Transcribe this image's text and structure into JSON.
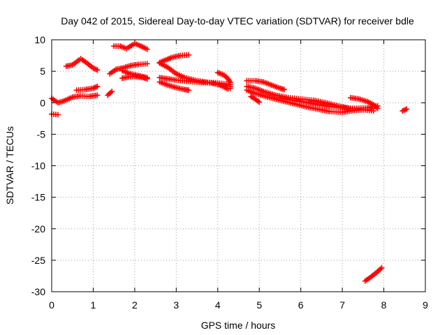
{
  "chart_data": {
    "type": "scatter",
    "title": "Day 042 of 2015, Sidereal Day-to-day VTEC variation (SDTVAR) for receiver bdle",
    "xlabel": "GPS time / hours",
    "ylabel": "SDTVAR / TECUs",
    "xlim": [
      0,
      9
    ],
    "ylim": [
      -30,
      10
    ],
    "x_ticks": [
      0,
      1,
      2,
      3,
      4,
      5,
      6,
      7,
      8,
      9
    ],
    "y_ticks": [
      -30,
      -25,
      -20,
      -15,
      -10,
      -5,
      0,
      5,
      10
    ],
    "grid": true,
    "marker": "+",
    "color": "#ff0000",
    "series": [
      {
        "name": "s1",
        "points": [
          [
            0.0,
            0.7
          ],
          [
            0.15,
            0.0
          ],
          [
            0.3,
            0.3
          ],
          [
            0.5,
            0.9
          ],
          [
            0.7,
            1.1
          ],
          [
            0.9,
            1.0
          ],
          [
            1.1,
            1.2
          ]
        ]
      },
      {
        "name": "s2",
        "points": [
          [
            0.0,
            -1.8
          ],
          [
            0.15,
            -1.9
          ]
        ]
      },
      {
        "name": "s3",
        "points": [
          [
            0.35,
            5.8
          ],
          [
            0.5,
            6.0
          ],
          [
            0.7,
            7.0
          ],
          [
            0.85,
            6.3
          ],
          [
            1.0,
            5.5
          ],
          [
            1.1,
            5.2
          ]
        ]
      },
      {
        "name": "s4",
        "points": [
          [
            0.6,
            2.0
          ],
          [
            0.8,
            2.1
          ],
          [
            1.0,
            2.3
          ],
          [
            1.1,
            2.6
          ]
        ]
      },
      {
        "name": "s5",
        "points": [
          [
            1.35,
            1.2
          ],
          [
            1.45,
            1.8
          ]
        ]
      },
      {
        "name": "s6",
        "points": [
          [
            1.4,
            4.6
          ],
          [
            1.55,
            5.3
          ],
          [
            1.7,
            5.5
          ],
          [
            1.9,
            5.9
          ],
          [
            2.1,
            6.1
          ],
          [
            2.3,
            6.2
          ]
        ]
      },
      {
        "name": "s7",
        "points": [
          [
            1.5,
            9.0
          ],
          [
            1.65,
            9.0
          ],
          [
            1.8,
            8.6
          ],
          [
            2.0,
            9.4
          ],
          [
            2.15,
            9.0
          ],
          [
            2.3,
            8.5
          ]
        ]
      },
      {
        "name": "s8",
        "points": [
          [
            1.7,
            3.9
          ],
          [
            1.85,
            4.1
          ],
          [
            2.0,
            4.2
          ],
          [
            2.2,
            4.0
          ],
          [
            2.3,
            3.8
          ]
        ]
      },
      {
        "name": "s9",
        "points": [
          [
            1.7,
            5.1
          ],
          [
            1.9,
            4.6
          ],
          [
            2.1,
            4.3
          ],
          [
            2.3,
            4.0
          ]
        ]
      },
      {
        "name": "s10",
        "points": [
          [
            2.6,
            6.4
          ],
          [
            2.75,
            6.8
          ],
          [
            2.9,
            7.2
          ],
          [
            3.1,
            7.5
          ],
          [
            3.3,
            7.6
          ]
        ]
      },
      {
        "name": "s11",
        "points": [
          [
            2.6,
            6.3
          ],
          [
            2.8,
            5.6
          ],
          [
            3.0,
            4.6
          ],
          [
            3.2,
            4.0
          ],
          [
            3.5,
            3.5
          ],
          [
            3.8,
            3.2
          ],
          [
            4.0,
            2.9
          ],
          [
            4.25,
            2.8
          ]
        ]
      },
      {
        "name": "s12",
        "points": [
          [
            2.6,
            4.0
          ],
          [
            2.8,
            3.8
          ],
          [
            3.0,
            3.6
          ],
          [
            3.3,
            3.4
          ],
          [
            3.6,
            3.2
          ],
          [
            3.9,
            3.2
          ],
          [
            4.2,
            3.0
          ]
        ]
      },
      {
        "name": "s13",
        "points": [
          [
            2.6,
            3.3
          ],
          [
            2.8,
            2.8
          ],
          [
            3.0,
            2.4
          ],
          [
            3.2,
            2.1
          ],
          [
            3.3,
            2.0
          ]
        ]
      },
      {
        "name": "s14",
        "points": [
          [
            4.0,
            4.8
          ],
          [
            4.15,
            4.4
          ],
          [
            4.25,
            3.8
          ],
          [
            4.3,
            3.2
          ],
          [
            4.3,
            2.3
          ]
        ]
      },
      {
        "name": "s15",
        "points": [
          [
            4.0,
            3.0
          ],
          [
            4.15,
            2.5
          ],
          [
            4.25,
            2.2
          ]
        ]
      },
      {
        "name": "s16",
        "points": [
          [
            4.7,
            3.5
          ],
          [
            4.9,
            3.5
          ],
          [
            5.1,
            3.3
          ],
          [
            5.3,
            2.8
          ],
          [
            5.5,
            2.3
          ],
          [
            5.6,
            2.1
          ]
        ]
      },
      {
        "name": "s17",
        "points": [
          [
            4.7,
            2.6
          ],
          [
            4.9,
            2.3
          ],
          [
            5.1,
            1.8
          ],
          [
            5.4,
            1.2
          ],
          [
            5.7,
            0.8
          ],
          [
            6.0,
            0.6
          ],
          [
            6.3,
            0.4
          ],
          [
            6.6,
            0.0
          ],
          [
            6.9,
            -0.5
          ],
          [
            7.2,
            -0.9
          ],
          [
            7.5,
            -1.1
          ],
          [
            7.75,
            -1.3
          ]
        ]
      },
      {
        "name": "s18",
        "points": [
          [
            4.7,
            2.0
          ],
          [
            4.9,
            1.5
          ],
          [
            5.2,
            0.9
          ],
          [
            5.5,
            0.4
          ],
          [
            5.8,
            -0.1
          ],
          [
            6.1,
            -0.6
          ],
          [
            6.4,
            -1.0
          ],
          [
            6.7,
            -1.4
          ],
          [
            7.0,
            -1.5
          ],
          [
            7.3,
            -1.2
          ],
          [
            7.6,
            -1.1
          ]
        ]
      },
      {
        "name": "s19",
        "points": [
          [
            4.8,
            1.0
          ],
          [
            4.9,
            0.6
          ],
          [
            5.0,
            0.1
          ]
        ]
      },
      {
        "name": "s20",
        "points": [
          [
            5.5,
            0.8
          ],
          [
            5.8,
            0.4
          ],
          [
            6.1,
            0.1
          ],
          [
            6.4,
            -0.3
          ],
          [
            6.7,
            -0.6
          ],
          [
            7.0,
            -0.8
          ],
          [
            7.3,
            -0.9
          ],
          [
            7.6,
            -0.8
          ],
          [
            7.85,
            -0.5
          ]
        ]
      },
      {
        "name": "s21",
        "points": [
          [
            7.2,
            0.8
          ],
          [
            7.4,
            0.6
          ],
          [
            7.6,
            0.2
          ],
          [
            7.75,
            -0.3
          ],
          [
            7.85,
            -0.9
          ]
        ]
      },
      {
        "name": "s22",
        "points": [
          [
            8.45,
            -1.3
          ],
          [
            8.55,
            -1.0
          ]
        ]
      },
      {
        "name": "s23",
        "points": [
          [
            7.55,
            -28.3
          ],
          [
            7.7,
            -27.6
          ],
          [
            7.85,
            -26.8
          ],
          [
            7.95,
            -26.2
          ]
        ]
      }
    ]
  }
}
